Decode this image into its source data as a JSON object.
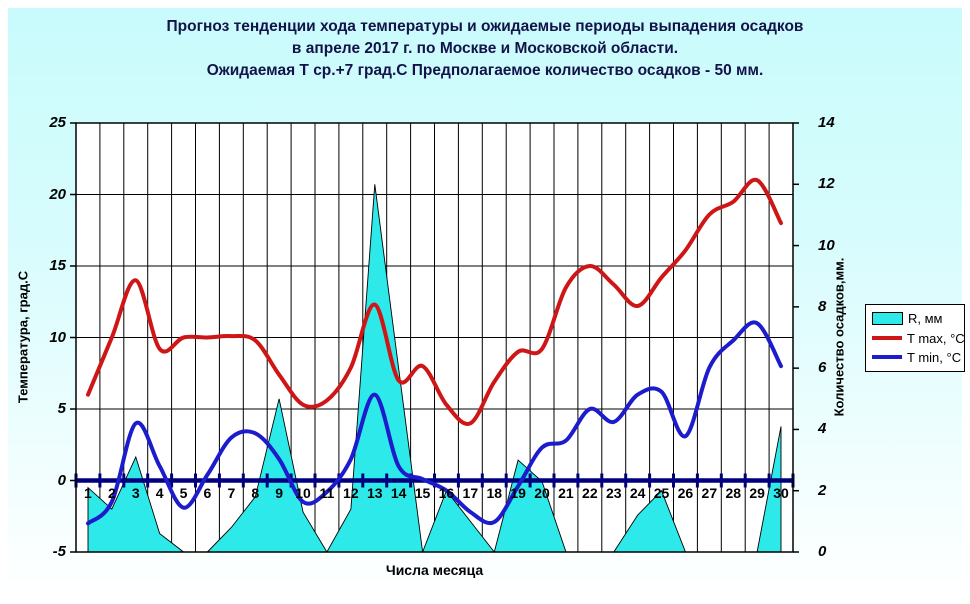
{
  "title": {
    "line1": "Прогноз тенденции хода температуры и ожидаемые периоды выпадения осадков",
    "line2": "в апреле 2017 г. по Москве и Московской области.",
    "line3": "Ожидаемая Т ср.+7 град.С Предполагаемое количество осадков - 50 мм."
  },
  "colors": {
    "background_top": "#c9fbfc",
    "plot_background": "#ffffff",
    "grid": "#000000",
    "zero_axis": "#00007c",
    "rain_fill": "#2ee9ea",
    "tmax_line": "#cf1616",
    "tmin_line": "#1c1ccd",
    "legend_border": "#000000",
    "title_text": "#13134a"
  },
  "chart_data": {
    "type": "mixed",
    "title": "Прогноз тенденции хода температуры и ожидаемые периоды выпадения осадков в апреле 2017 г. по Москве и Московской области. Ожидаемая Т ср.+7 град.С Предполагаемое количество осадков - 50 мм.",
    "x": [
      1,
      2,
      3,
      4,
      5,
      6,
      7,
      8,
      9,
      10,
      11,
      12,
      13,
      14,
      15,
      16,
      17,
      18,
      19,
      20,
      21,
      22,
      23,
      24,
      25,
      26,
      27,
      28,
      29,
      30
    ],
    "series": [
      {
        "name": "R, мм",
        "type": "area",
        "axis": "right",
        "color": "#2ee9ea",
        "values": [
          2.1,
          1.4,
          3.1,
          0.6,
          0,
          0,
          0.8,
          1.8,
          5,
          1.3,
          0,
          1.4,
          12,
          6,
          0,
          2,
          1,
          0,
          3,
          2.3,
          0,
          0,
          0,
          1.2,
          2,
          0,
          0,
          0,
          0,
          4.1
        ]
      },
      {
        "name": "T max, °C",
        "type": "line",
        "axis": "left",
        "color": "#cf1616",
        "values": [
          6,
          10,
          14,
          9.2,
          10,
          10,
          10.1,
          9.8,
          7.4,
          5.3,
          5.6,
          7.9,
          12.3,
          7,
          8,
          5.3,
          4,
          6.9,
          9,
          9.2,
          13.5,
          15,
          13.7,
          12.2,
          14.2,
          16.1,
          18.6,
          19.5,
          21,
          18
        ]
      },
      {
        "name": "T min, °C",
        "type": "line",
        "axis": "left",
        "color": "#1c1ccd",
        "values": [
          -3,
          -1.5,
          4,
          1,
          -1.9,
          0.4,
          3,
          3.3,
          1.5,
          -1.5,
          -0.8,
          1.5,
          6,
          1,
          0.1,
          -0.7,
          -2.2,
          -2.9,
          -0.4,
          2.3,
          2.8,
          5,
          4.1,
          6,
          6.2,
          3.1,
          7.9,
          9.8,
          11,
          8
        ]
      }
    ],
    "left_axis": {
      "title": "Температура, град.С",
      "min": -5,
      "max": 25,
      "ticks": [
        25,
        20,
        15,
        10,
        5,
        0,
        -5
      ]
    },
    "right_axis": {
      "title": "Количество осадков,мм.",
      "min": 0,
      "max": 14,
      "ticks": [
        14,
        12,
        10,
        8,
        6,
        4,
        2,
        0
      ]
    },
    "x_axis": {
      "title": "Числа месяца",
      "labels": [
        "1",
        "2",
        "3",
        "4",
        "5",
        "6",
        "7",
        "8",
        "9",
        "10",
        "11",
        "12",
        "13",
        "14",
        "15",
        "16",
        "17",
        "18",
        "19",
        "20",
        "21",
        "22",
        "23",
        "24",
        "25",
        "26",
        "27",
        "28",
        "29",
        "30"
      ]
    },
    "grid": true,
    "legend_position": "right"
  }
}
